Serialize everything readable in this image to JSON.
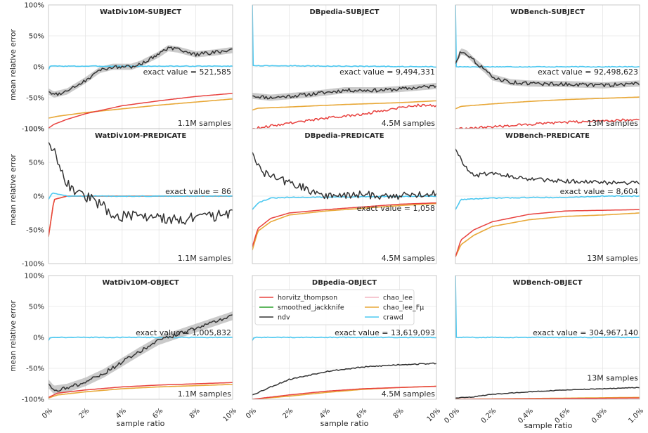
{
  "colors": {
    "horvitz_thompson": "#e8423f",
    "smoothed_jackknife": "#2ca02c",
    "ndv": "#333333",
    "chao_lee": "#f4b6c2",
    "chao_lee_Fmu": "#e8a838",
    "crawd": "#4cc8f0",
    "band": "#b8b8b8",
    "grid": "#e6e6e6"
  },
  "chart_data": {
    "type": "line",
    "ylabel": "mean relative error",
    "xlabel": "sample ratio",
    "ylim": [
      -100,
      100
    ],
    "yticks": [
      "100%",
      "50%",
      "0%",
      "-50%",
      "-100%"
    ],
    "xticks_a": [
      "0%",
      "2%",
      "4%",
      "6%",
      "8%",
      "10%"
    ],
    "xticks_b": [
      "0.0%",
      "0.2%",
      "0.4%",
      "0.6%",
      "0.8%",
      "1.0%"
    ],
    "legend": {
      "placement": "top-left",
      "entries": [
        "horvitz_thompson",
        "chao_lee",
        "smoothed_jackknife",
        "chao_lee_Fμ",
        "ndv",
        "crawd"
      ]
    },
    "panels": [
      {
        "title": "WatDiv10M-SUBJECT",
        "exact": "exact value = 521,585",
        "samples": "1.1M samples",
        "series": {
          "horvitz_thompson": [
            [
              0,
              -99
            ],
            [
              0.3,
              -93
            ],
            [
              1,
              -85
            ],
            [
              2,
              -76
            ],
            [
              4,
              -63
            ],
            [
              6,
              -55
            ],
            [
              8,
              -48
            ],
            [
              10,
              -43
            ]
          ],
          "chao_lee_Fmu": [
            [
              0,
              -83
            ],
            [
              0.5,
              -80
            ],
            [
              2,
              -74
            ],
            [
              4,
              -68
            ],
            [
              6,
              -62
            ],
            [
              8,
              -57
            ],
            [
              10,
              -52
            ]
          ],
          "crawd": [
            [
              0,
              -5
            ],
            [
              0.1,
              2
            ],
            [
              0.3,
              1
            ],
            [
              10,
              1
            ]
          ],
          "ndv": [
            [
              0,
              -40
            ],
            [
              0.3,
              -45
            ],
            [
              1,
              -40
            ],
            [
              2,
              -22
            ],
            [
              2.8,
              -5
            ],
            [
              3.5,
              0
            ],
            [
              4.5,
              0
            ],
            [
              5,
              5
            ],
            [
              6,
              20
            ],
            [
              6.5,
              30
            ],
            [
              7,
              28
            ],
            [
              8,
              20
            ],
            [
              9,
              23
            ],
            [
              10,
              27
            ]
          ]
        },
        "band": 5,
        "ndv_noise": 3
      },
      {
        "title": "DBpedia-SUBJECT",
        "exact": "exact value = 9,494,331",
        "samples": "4.5M samples",
        "series": {
          "horvitz_thompson": [
            [
              0,
              -100
            ],
            [
              2,
              -91
            ],
            [
              4,
              -83
            ],
            [
              6,
              -77
            ],
            [
              7,
              -71
            ],
            [
              8,
              -66
            ],
            [
              9,
              -62
            ],
            [
              10,
              -63
            ]
          ],
          "chao_lee_Fmu": [
            [
              0,
              -70
            ],
            [
              0.3,
              -67
            ],
            [
              2,
              -65
            ],
            [
              5,
              -61
            ],
            [
              8,
              -58
            ],
            [
              10,
              -55
            ]
          ],
          "crawd": [
            [
              0,
              100
            ],
            [
              0.05,
              2
            ],
            [
              10,
              0
            ]
          ],
          "ndv": [
            [
              0,
              -47
            ],
            [
              1,
              -50
            ],
            [
              3,
              -45
            ],
            [
              5,
              -38
            ],
            [
              7,
              -38
            ],
            [
              8,
              -36
            ],
            [
              10,
              -31
            ]
          ]
        },
        "band": 5,
        "ndv_noise": 3
      },
      {
        "title": "WDBench-SUBJECT",
        "exact": "exact value = 92,498,623",
        "samples": "13M samples",
        "series": {
          "horvitz_thompson": [
            [
              0,
              -100
            ],
            [
              2,
              -97
            ],
            [
              4,
              -93
            ],
            [
              6,
              -90
            ],
            [
              8,
              -87
            ],
            [
              10,
              -85
            ]
          ],
          "chao_lee_Fmu": [
            [
              0,
              -68
            ],
            [
              0.3,
              -64
            ],
            [
              2,
              -60
            ],
            [
              4,
              -56
            ],
            [
              6,
              -53
            ],
            [
              8,
              -51
            ],
            [
              10,
              -49
            ]
          ],
          "crawd": [
            [
              0,
              100
            ],
            [
              0.05,
              0
            ],
            [
              10,
              0
            ]
          ],
          "ndv": [
            [
              0,
              5
            ],
            [
              0.3,
              25
            ],
            [
              0.6,
              22
            ],
            [
              1,
              10
            ],
            [
              1.6,
              -5
            ],
            [
              2,
              -17
            ],
            [
              3,
              -25
            ],
            [
              4,
              -27
            ],
            [
              6,
              -28
            ],
            [
              8,
              -30
            ],
            [
              10,
              -27
            ]
          ]
        },
        "band": 5,
        "ndv_noise": 3
      },
      {
        "title": "WatDiv10M-PREDICATE",
        "exact": "exact value = 86",
        "samples": "1.1M samples",
        "series": {
          "horvitz_thompson": [
            [
              0,
              -60
            ],
            [
              0.3,
              -5
            ],
            [
              1,
              0
            ],
            [
              10,
              0
            ]
          ],
          "chao_lee_Fmu": [
            [
              0,
              -60
            ],
            [
              0.3,
              -5
            ],
            [
              1,
              0
            ],
            [
              10,
              0
            ]
          ],
          "crawd": [
            [
              0,
              -5
            ],
            [
              0.2,
              5
            ],
            [
              0.5,
              3
            ],
            [
              1,
              0
            ],
            [
              10,
              0
            ]
          ],
          "ndv": [
            [
              0,
              80
            ],
            [
              0.5,
              55
            ],
            [
              1,
              20
            ],
            [
              1.5,
              5
            ],
            [
              2,
              0
            ],
            [
              3,
              -15
            ],
            [
              3.5,
              -30
            ],
            [
              5,
              -30
            ],
            [
              7,
              -35
            ],
            [
              9,
              -30
            ],
            [
              10,
              -25
            ]
          ]
        },
        "band": 0,
        "ndv_noise": 8
      },
      {
        "title": "DBpedia-PREDICATE",
        "exact": "exact value = 1,058",
        "samples": "4.5M samples",
        "series": {
          "horvitz_thompson": [
            [
              0,
              -75
            ],
            [
              0.3,
              -48
            ],
            [
              1,
              -33
            ],
            [
              2,
              -25
            ],
            [
              4,
              -20
            ],
            [
              6,
              -16
            ],
            [
              8,
              -12
            ],
            [
              10,
              -10
            ]
          ],
          "chao_lee_Fmu": [
            [
              0,
              -80
            ],
            [
              0.3,
              -52
            ],
            [
              1,
              -38
            ],
            [
              2,
              -28
            ],
            [
              4,
              -22
            ],
            [
              6,
              -18
            ],
            [
              8,
              -14
            ],
            [
              10,
              -11
            ]
          ],
          "crawd": [
            [
              0,
              -20
            ],
            [
              0.3,
              -10
            ],
            [
              1,
              -3
            ],
            [
              2,
              -2
            ],
            [
              10,
              0
            ]
          ],
          "ndv": [
            [
              0,
              65
            ],
            [
              0.5,
              35
            ],
            [
              1,
              30
            ],
            [
              2,
              20
            ],
            [
              3,
              10
            ],
            [
              4,
              0
            ],
            [
              6,
              2
            ],
            [
              8,
              0
            ],
            [
              10,
              5
            ]
          ]
        },
        "band": 0,
        "ndv_noise": 6
      },
      {
        "title": "WDBench-PREDICATE",
        "exact": "exact value = 8,604",
        "samples": "13M samples",
        "series": {
          "horvitz_thompson": [
            [
              0,
              -90
            ],
            [
              0.3,
              -65
            ],
            [
              1,
              -50
            ],
            [
              2,
              -38
            ],
            [
              4,
              -27
            ],
            [
              6,
              -22
            ],
            [
              8,
              -21
            ],
            [
              10,
              -20
            ]
          ],
          "chao_lee_Fmu": [
            [
              0,
              -90
            ],
            [
              0.3,
              -72
            ],
            [
              1,
              -58
            ],
            [
              2,
              -45
            ],
            [
              4,
              -35
            ],
            [
              6,
              -30
            ],
            [
              8,
              -28
            ],
            [
              10,
              -25
            ]
          ],
          "crawd": [
            [
              0,
              -20
            ],
            [
              0.3,
              -5
            ],
            [
              2,
              -3
            ],
            [
              4,
              -2
            ],
            [
              6,
              -2
            ],
            [
              8,
              0
            ],
            [
              10,
              0
            ]
          ],
          "ndv": [
            [
              0,
              70
            ],
            [
              0.5,
              45
            ],
            [
              1,
              30
            ],
            [
              2,
              35
            ],
            [
              4,
              25
            ],
            [
              6,
              22
            ],
            [
              8,
              20
            ],
            [
              10,
              20
            ]
          ]
        },
        "band": 0,
        "ndv_noise": 3
      },
      {
        "title": "WatDiv10M-OBJECT",
        "exact": "exact value = 1,005,832",
        "samples": "1.1M samples",
        "series": {
          "horvitz_thompson": [
            [
              0,
              -97
            ],
            [
              0.5,
              -90
            ],
            [
              2,
              -85
            ],
            [
              4,
              -80
            ],
            [
              6,
              -77
            ],
            [
              8,
              -75
            ],
            [
              10,
              -73
            ]
          ],
          "chao_lee_Fmu": [
            [
              0,
              -98
            ],
            [
              0.5,
              -93
            ],
            [
              2,
              -88
            ],
            [
              4,
              -83
            ],
            [
              6,
              -80
            ],
            [
              8,
              -78
            ],
            [
              10,
              -76
            ]
          ],
          "crawd": [
            [
              0,
              -5
            ],
            [
              0.1,
              0
            ],
            [
              10,
              0
            ]
          ],
          "ndv": [
            [
              0,
              -75
            ],
            [
              0.3,
              -85
            ],
            [
              1,
              -82
            ],
            [
              2,
              -72
            ],
            [
              3,
              -58
            ],
            [
              4,
              -40
            ],
            [
              5,
              -22
            ],
            [
              6,
              -5
            ],
            [
              7,
              5
            ],
            [
              8,
              15
            ],
            [
              9,
              25
            ],
            [
              10,
              35
            ]
          ]
        },
        "band": 7,
        "ndv_noise": 3
      },
      {
        "title": "DBpedia-OBJECT",
        "exact": "exact value = 13,619,093",
        "samples": "4.5M samples",
        "series": {
          "horvitz_thompson": [
            [
              0,
              -100
            ],
            [
              2,
              -93
            ],
            [
              4,
              -87
            ],
            [
              6,
              -83
            ],
            [
              8,
              -81
            ],
            [
              10,
              -79
            ]
          ],
          "chao_lee_Fmu": [
            [
              0,
              -100
            ],
            [
              2,
              -95
            ],
            [
              4,
              -89
            ],
            [
              6,
              -84
            ],
            [
              8,
              -81
            ],
            [
              10,
              -79
            ]
          ],
          "crawd": [
            [
              0,
              -5
            ],
            [
              0.1,
              0
            ],
            [
              10,
              0
            ]
          ],
          "ndv": [
            [
              0,
              -93
            ],
            [
              1,
              -80
            ],
            [
              2,
              -68
            ],
            [
              4,
              -55
            ],
            [
              6,
              -48
            ],
            [
              8,
              -44
            ],
            [
              10,
              -42
            ]
          ]
        },
        "band": 0,
        "ndv_noise": 1
      },
      {
        "title": "WDBench-OBJECT",
        "exact": "exact value = 304,967,140",
        "samples": "13M samples",
        "series": {
          "horvitz_thompson": [
            [
              0,
              -100
            ],
            [
              10,
              -98
            ]
          ],
          "chao_lee_Fmu": [
            [
              0,
              -100
            ],
            [
              10,
              -97
            ]
          ],
          "crawd": [
            [
              0,
              100
            ],
            [
              0.05,
              0
            ],
            [
              10,
              0
            ]
          ],
          "ndv": [
            [
              0,
              -98
            ],
            [
              1,
              -96
            ],
            [
              2,
              -92
            ],
            [
              4,
              -88
            ],
            [
              6,
              -85
            ],
            [
              8,
              -83
            ],
            [
              10,
              -81
            ]
          ]
        },
        "band": 0,
        "ndv_noise": 0.5
      }
    ]
  }
}
